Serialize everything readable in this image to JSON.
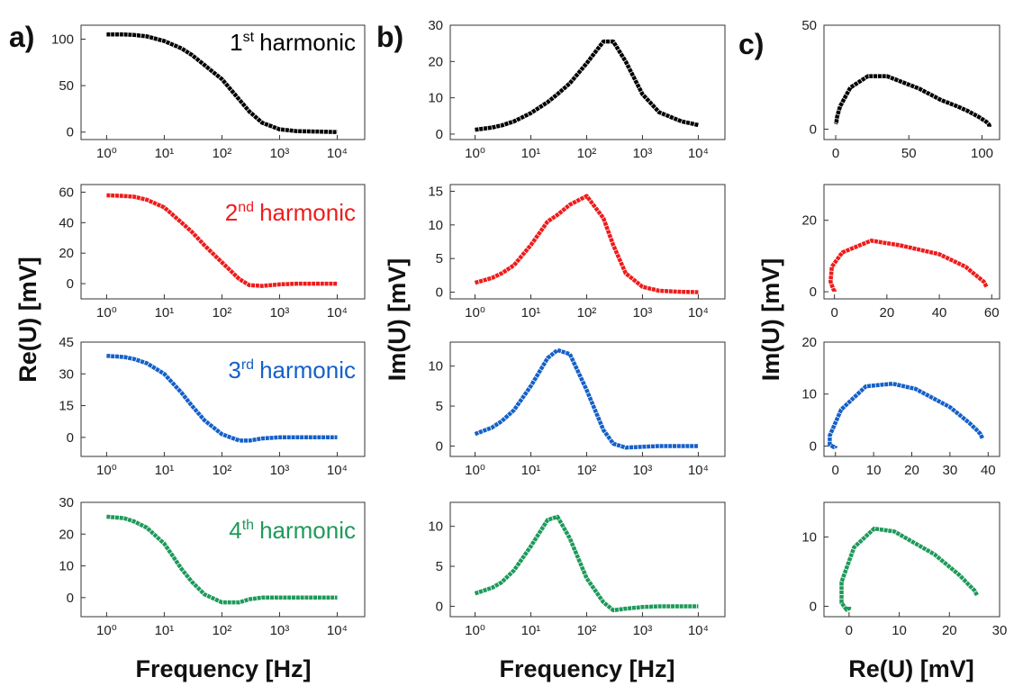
{
  "panels": [
    {
      "label": "a)",
      "xlabel": "Frequency [Hz]",
      "ylabel": "Re(U) [mV]"
    },
    {
      "label": "b)",
      "xlabel": "Frequency [Hz]",
      "ylabel": "Im(U) [mV]"
    },
    {
      "label": "c)",
      "xlabel": "Re(U) [mV]",
      "ylabel": "Im(U) [mV]"
    }
  ],
  "chart_data": [
    {
      "type": "line",
      "log_x": true,
      "xlim": [
        0.36,
        30000
      ],
      "xticks": [
        {
          "value": 1,
          "label": "10⁰"
        },
        {
          "value": 10,
          "label": "10¹"
        },
        {
          "value": 100,
          "label": "10²"
        },
        {
          "value": 1000,
          "label": "10³"
        },
        {
          "value": 10000,
          "label": "10⁴"
        }
      ],
      "ylim": [
        -8,
        115
      ],
      "yticks": [
        0,
        50,
        100
      ],
      "x": [
        1,
        2,
        3,
        5,
        10,
        20,
        30,
        50,
        100,
        200,
        300,
        500,
        1000,
        2000,
        5000,
        10000
      ],
      "series": [
        {
          "color": "#000000",
          "values": [
            105,
            105,
            104.5,
            103,
            98,
            90,
            83,
            72,
            57,
            35,
            22,
            10,
            3,
            1,
            0.5,
            0
          ]
        }
      ],
      "annotation": {
        "ordinal": "1",
        "suffix": "st",
        "text": "harmonic"
      }
    },
    {
      "type": "line",
      "log_x": true,
      "xlim": [
        0.36,
        30000
      ],
      "xticks": [
        {
          "value": 1,
          "label": "10⁰"
        },
        {
          "value": 10,
          "label": "10¹"
        },
        {
          "value": 100,
          "label": "10²"
        },
        {
          "value": 1000,
          "label": "10³"
        },
        {
          "value": 10000,
          "label": "10⁴"
        }
      ],
      "ylim": [
        -10,
        65
      ],
      "yticks": [
        0,
        20,
        40,
        60
      ],
      "x": [
        1,
        2,
        3,
        5,
        10,
        20,
        30,
        50,
        100,
        200,
        300,
        500,
        1000,
        2000,
        5000,
        10000
      ],
      "series": [
        {
          "color": "#ee1c1c",
          "values": [
            58,
            57.5,
            57,
            55,
            50,
            40,
            34,
            25,
            14,
            3,
            -1,
            -1.5,
            -0.5,
            0,
            0,
            0
          ]
        }
      ],
      "annotation": {
        "ordinal": "2",
        "suffix": "nd",
        "text": "harmonic"
      }
    },
    {
      "type": "line",
      "log_x": true,
      "xlim": [
        0.36,
        30000
      ],
      "xticks": [
        {
          "value": 1,
          "label": "10⁰"
        },
        {
          "value": 10,
          "label": "10¹"
        },
        {
          "value": 100,
          "label": "10²"
        },
        {
          "value": 1000,
          "label": "10³"
        },
        {
          "value": 10000,
          "label": "10⁴"
        }
      ],
      "ylim": [
        -9,
        45
      ],
      "yticks": [
        0,
        15,
        30,
        45
      ],
      "x": [
        1,
        2,
        3,
        5,
        10,
        20,
        30,
        50,
        100,
        200,
        300,
        500,
        1000,
        2000,
        5000,
        10000
      ],
      "series": [
        {
          "color": "#1560c8",
          "values": [
            38.5,
            38,
            37,
            35,
            30,
            21,
            15,
            8,
            1.5,
            -1.5,
            -1.5,
            -0.5,
            0,
            0,
            0,
            0
          ]
        }
      ],
      "annotation": {
        "ordinal": "3",
        "suffix": "rd",
        "text": "harmonic"
      }
    },
    {
      "type": "line",
      "log_x": true,
      "xlim": [
        0.36,
        30000
      ],
      "xticks": [
        {
          "value": 1,
          "label": "10⁰"
        },
        {
          "value": 10,
          "label": "10¹"
        },
        {
          "value": 100,
          "label": "10²"
        },
        {
          "value": 1000,
          "label": "10³"
        },
        {
          "value": 10000,
          "label": "10⁴"
        }
      ],
      "ylim": [
        -6,
        30
      ],
      "yticks": [
        0,
        10,
        20,
        30
      ],
      "x": [
        1,
        2,
        3,
        5,
        10,
        20,
        30,
        50,
        100,
        200,
        300,
        500,
        1000,
        2000,
        5000,
        10000
      ],
      "series": [
        {
          "color": "#1e9a5a",
          "values": [
            25.5,
            25,
            24,
            22,
            17,
            9,
            5,
            1,
            -1.5,
            -1.5,
            -0.5,
            0,
            0,
            0,
            0,
            0
          ]
        }
      ],
      "annotation": {
        "ordinal": "4",
        "suffix": "th",
        "text": "harmonic"
      }
    },
    {
      "type": "line",
      "log_x": true,
      "xlim": [
        0.36,
        30000
      ],
      "xticks": [
        {
          "value": 1,
          "label": "10⁰"
        },
        {
          "value": 10,
          "label": "10¹"
        },
        {
          "value": 100,
          "label": "10²"
        },
        {
          "value": 1000,
          "label": "10³"
        },
        {
          "value": 10000,
          "label": "10⁴"
        }
      ],
      "ylim": [
        -1.5,
        30
      ],
      "yticks": [
        0,
        10,
        20,
        30
      ],
      "x": [
        1,
        2,
        3,
        5,
        10,
        20,
        30,
        50,
        100,
        200,
        300,
        500,
        1000,
        2000,
        5000,
        10000
      ],
      "series": [
        {
          "color": "#000000",
          "values": [
            1.2,
            1.8,
            2.4,
            3.5,
            5.8,
            8.8,
            11,
            14,
            19.5,
            25.5,
            25.5,
            20,
            11,
            6,
            3.5,
            2.5
          ]
        }
      ]
    },
    {
      "type": "line",
      "log_x": true,
      "xlim": [
        0.36,
        30000
      ],
      "xticks": [
        {
          "value": 1,
          "label": "10⁰"
        },
        {
          "value": 10,
          "label": "10¹"
        },
        {
          "value": 100,
          "label": "10²"
        },
        {
          "value": 1000,
          "label": "10³"
        },
        {
          "value": 10000,
          "label": "10⁴"
        }
      ],
      "ylim": [
        -1,
        16
      ],
      "yticks": [
        0,
        5,
        10,
        15
      ],
      "x": [
        1,
        2,
        3,
        5,
        10,
        20,
        30,
        50,
        100,
        200,
        300,
        500,
        1000,
        2000,
        5000,
        10000
      ],
      "series": [
        {
          "color": "#ee1c1c",
          "values": [
            1.4,
            2.1,
            2.8,
            4,
            7,
            10.5,
            11.5,
            13,
            14.3,
            11,
            7,
            2.8,
            0.8,
            0.2,
            0.05,
            0
          ]
        }
      ]
    },
    {
      "type": "line",
      "log_x": true,
      "xlim": [
        0.36,
        30000
      ],
      "xticks": [
        {
          "value": 1,
          "label": "10⁰"
        },
        {
          "value": 10,
          "label": "10¹"
        },
        {
          "value": 100,
          "label": "10²"
        },
        {
          "value": 1000,
          "label": "10³"
        },
        {
          "value": 10000,
          "label": "10⁴"
        }
      ],
      "ylim": [
        -1.3,
        13
      ],
      "yticks": [
        0,
        5,
        10
      ],
      "x": [
        1,
        2,
        3,
        5,
        10,
        20,
        30,
        50,
        100,
        200,
        300,
        500,
        1000,
        2000,
        5000,
        10000
      ],
      "series": [
        {
          "color": "#1560c8",
          "values": [
            1.5,
            2.3,
            3.1,
            4.5,
            7.5,
            11,
            12,
            11.5,
            7,
            2,
            0.3,
            -0.2,
            -0.1,
            0,
            0,
            0
          ]
        }
      ]
    },
    {
      "type": "line",
      "log_x": true,
      "xlim": [
        0.36,
        30000
      ],
      "xticks": [
        {
          "value": 1,
          "label": "10⁰"
        },
        {
          "value": 10,
          "label": "10¹"
        },
        {
          "value": 100,
          "label": "10²"
        },
        {
          "value": 1000,
          "label": "10³"
        },
        {
          "value": 10000,
          "label": "10⁴"
        }
      ],
      "ylim": [
        -1.3,
        13
      ],
      "yticks": [
        0,
        5,
        10
      ],
      "x": [
        1,
        2,
        3,
        5,
        10,
        20,
        30,
        50,
        100,
        200,
        300,
        500,
        1000,
        2000,
        5000,
        10000
      ],
      "series": [
        {
          "color": "#1e9a5a",
          "values": [
            1.6,
            2.3,
            3,
            4.5,
            7.5,
            10.8,
            11.2,
            8.5,
            3.5,
            0.5,
            -0.5,
            -0.3,
            -0.1,
            0,
            0,
            0
          ]
        }
      ]
    },
    {
      "type": "line",
      "log_x": false,
      "xlim": [
        -8,
        112
      ],
      "xticks": [
        0,
        50,
        100
      ],
      "ylim": [
        -5,
        50
      ],
      "yticks": [
        0,
        50
      ],
      "x": [
        105,
        105,
        104.5,
        103,
        98,
        90,
        83,
        72,
        57,
        35,
        22,
        10,
        3,
        1,
        0.5,
        0
      ],
      "series": [
        {
          "color": "#000000",
          "values": [
            1.2,
            1.8,
            2.4,
            3.5,
            5.8,
            8.8,
            11,
            14,
            19.5,
            25.5,
            25.5,
            20,
            11,
            6,
            3.5,
            2.5
          ]
        }
      ]
    },
    {
      "type": "line",
      "log_x": false,
      "xlim": [
        -4,
        63
      ],
      "xticks": [
        0,
        20,
        40,
        60
      ],
      "ylim": [
        -2,
        30
      ],
      "yticks": [
        0,
        20
      ],
      "x": [
        58,
        57.5,
        57,
        55,
        50,
        40,
        34,
        25,
        14,
        3,
        -1,
        -1.5,
        -0.5,
        0,
        0,
        0
      ],
      "series": [
        {
          "color": "#ee1c1c",
          "values": [
            1.4,
            2.1,
            2.8,
            4,
            7,
            10.5,
            11.5,
            13,
            14.3,
            11,
            7,
            2.8,
            0.8,
            0.2,
            0.05,
            0
          ]
        }
      ]
    },
    {
      "type": "line",
      "log_x": false,
      "xlim": [
        -3,
        43
      ],
      "xticks": [
        0,
        10,
        20,
        30,
        40
      ],
      "ylim": [
        -2,
        20
      ],
      "yticks": [
        0,
        10,
        20
      ],
      "x": [
        38.5,
        38,
        37,
        35,
        30,
        21,
        15,
        8,
        1.5,
        -1.5,
        -1.5,
        -0.5,
        0,
        0,
        0,
        0
      ],
      "series": [
        {
          "color": "#1560c8",
          "values": [
            1.5,
            2.3,
            3.1,
            4.5,
            7.5,
            11,
            12,
            11.5,
            7,
            2,
            0.3,
            -0.2,
            -0.1,
            0,
            0,
            0
          ]
        }
      ]
    },
    {
      "type": "line",
      "log_x": false,
      "xlim": [
        -5,
        30
      ],
      "xticks": [
        0,
        10,
        20,
        30
      ],
      "ylim": [
        -1.5,
        15
      ],
      "yticks": [
        0,
        10
      ],
      "x": [
        25.5,
        25,
        24,
        22,
        17,
        9,
        5,
        1,
        -1.5,
        -1.5,
        -0.5,
        0,
        0,
        0,
        0,
        0
      ],
      "series": [
        {
          "color": "#1e9a5a",
          "values": [
            1.6,
            2.3,
            3,
            4.5,
            7.5,
            10.8,
            11.2,
            8.5,
            3.5,
            0.5,
            -0.5,
            -0.3,
            -0.1,
            0,
            0,
            0
          ]
        }
      ]
    }
  ]
}
